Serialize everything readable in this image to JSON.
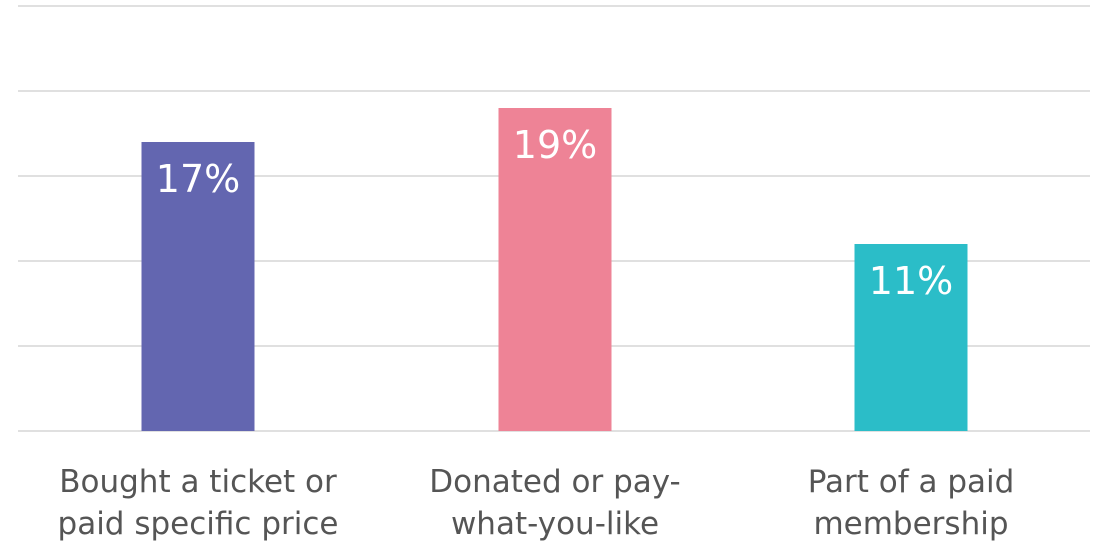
{
  "chart_data": {
    "type": "bar",
    "categories": [
      [
        "Bought a ticket or",
        "paid specific price"
      ],
      [
        "Donated or pay-",
        "what-you-like"
      ],
      [
        "Part of a paid",
        "membership"
      ]
    ],
    "values": [
      17,
      19,
      11
    ],
    "value_labels": [
      "17%",
      "19%",
      "11%"
    ],
    "colors": [
      "#6366b0",
      "#ee8396",
      "#2bbdc8"
    ],
    "ylim": [
      0,
      25
    ],
    "grid": true,
    "legend": "none",
    "title": "",
    "xlabel": "",
    "ylabel": ""
  }
}
